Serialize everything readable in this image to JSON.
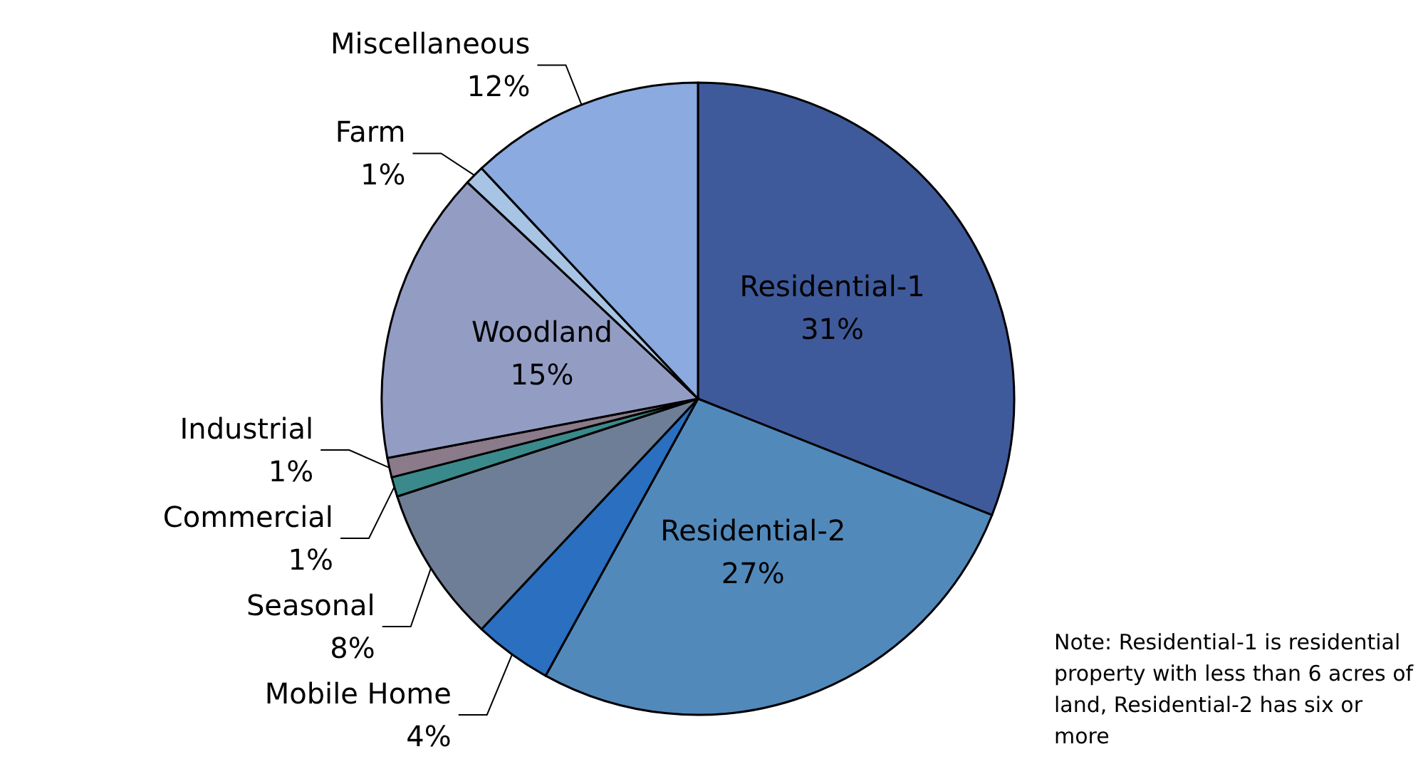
{
  "chart_data": {
    "type": "pie",
    "categories": [
      "Residential-1",
      "Residential-2",
      "Mobile Home",
      "Seasonal",
      "Commercial",
      "Industrial",
      "Woodland",
      "Farm",
      "Miscellaneous"
    ],
    "values": [
      31,
      27,
      4,
      8,
      1,
      1,
      15,
      1,
      12
    ],
    "value_labels": [
      "31%",
      "27%",
      "4%",
      "8%",
      "1%",
      "1%",
      "15%",
      "1%",
      "12%"
    ],
    "colors": [
      "#3f5a9a",
      "#5289bb",
      "#2a6fc0",
      "#6e7e96",
      "#3a8a8c",
      "#8a7a8a",
      "#939dc4",
      "#a8c4e4",
      "#8aaae0"
    ],
    "legend": false,
    "annotations": [
      "Note: Residential-1 is residential property with less than 6 acres of land, Residential-2 has six or more"
    ]
  }
}
